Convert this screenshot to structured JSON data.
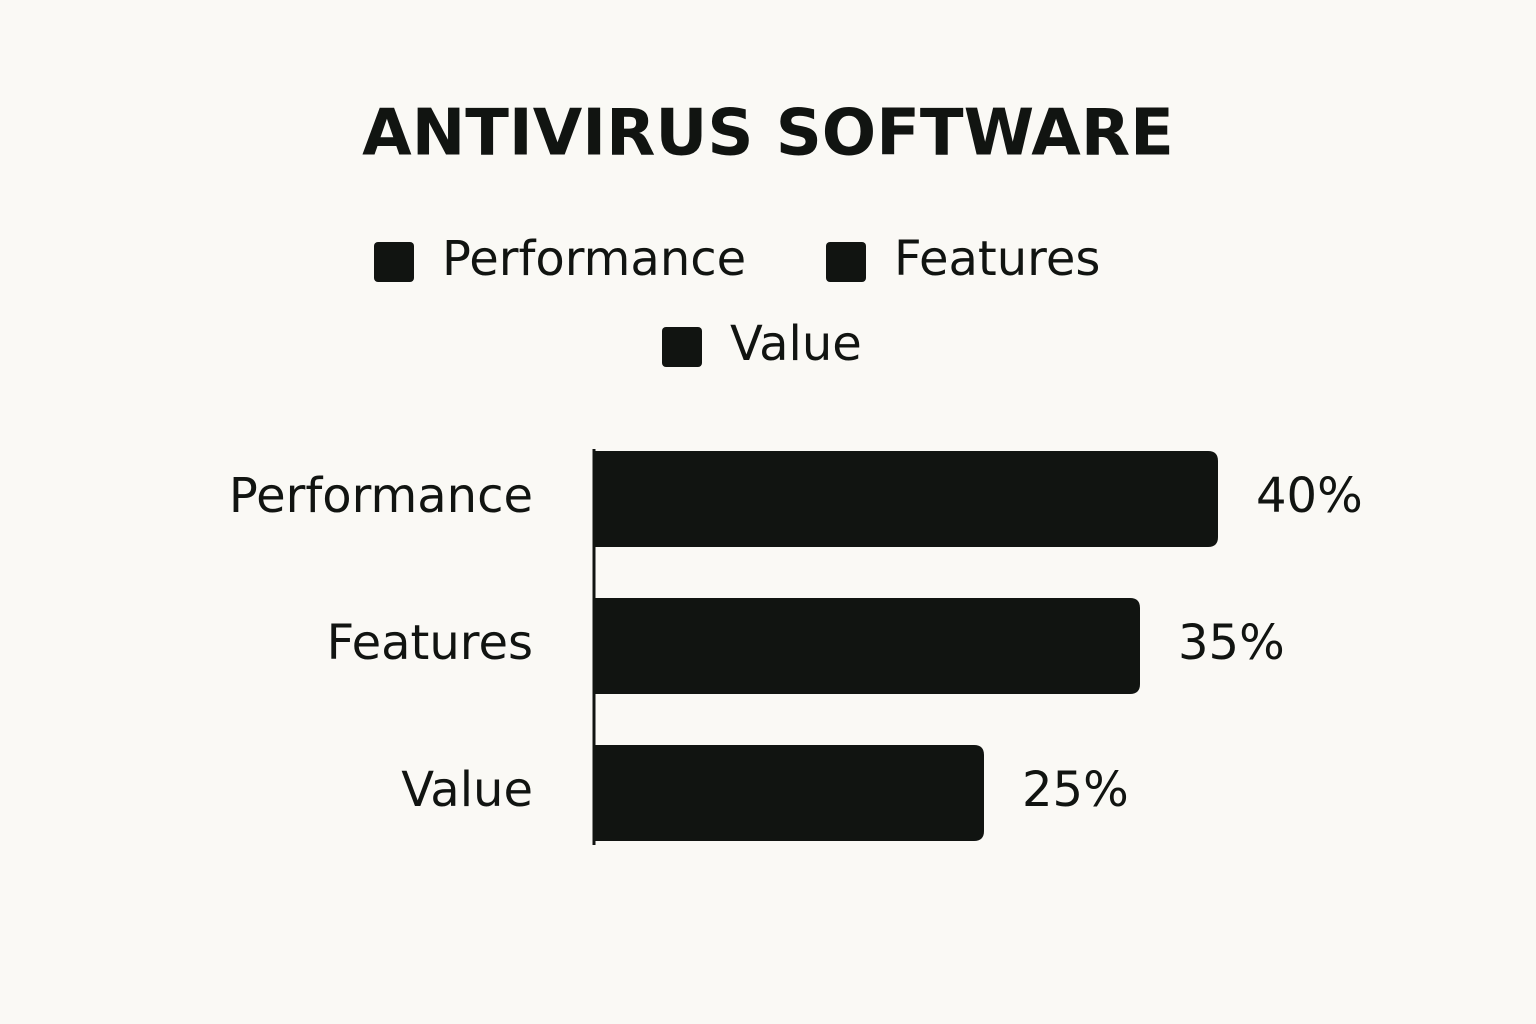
{
  "chart_data": {
    "type": "bar",
    "orientation": "horizontal",
    "title": "ANTIVIRUS SOFTWARE",
    "categories": [
      "Performance",
      "Features",
      "Value"
    ],
    "values": [
      40,
      35,
      25
    ],
    "value_labels": [
      "40%",
      "35%",
      "25%"
    ],
    "color": "#111411",
    "legend": true
  }
}
